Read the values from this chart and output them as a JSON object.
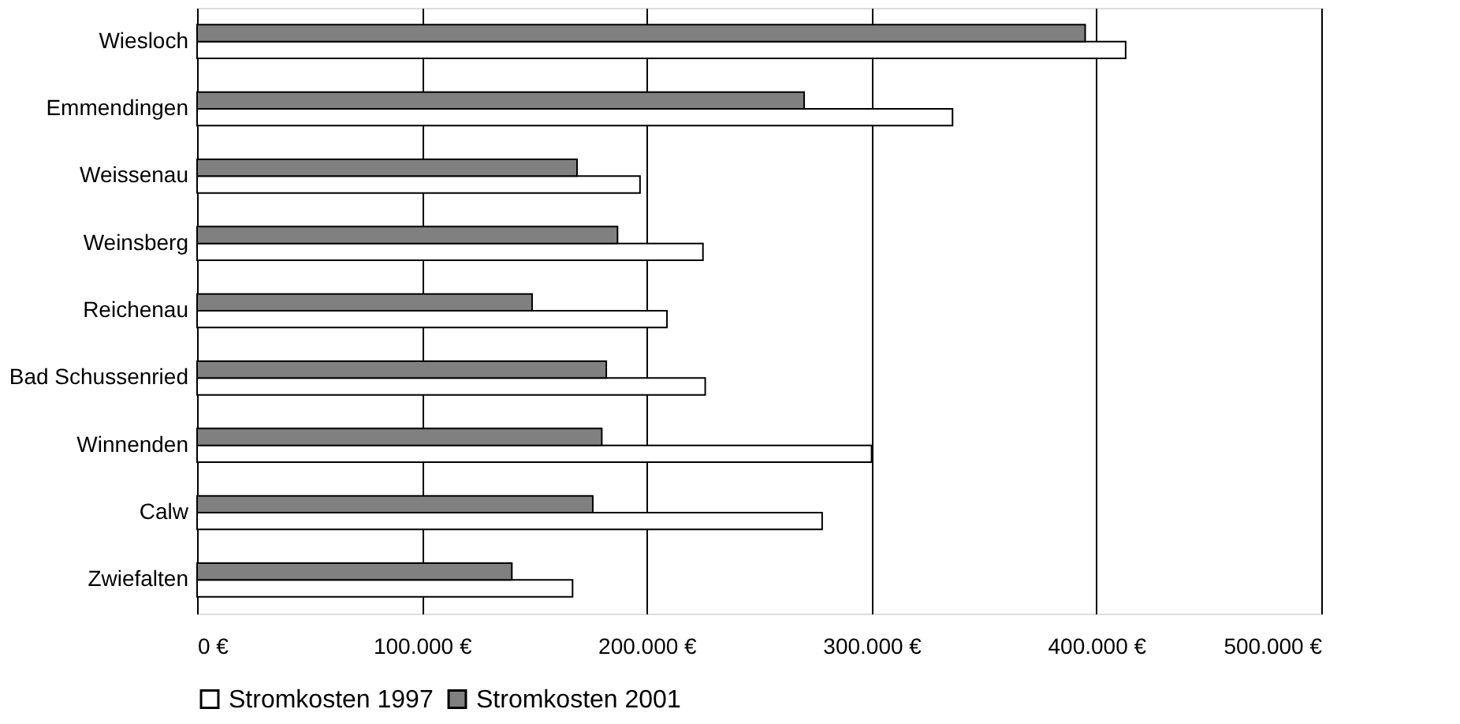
{
  "chart_data": {
    "type": "bar",
    "orientation": "horizontal",
    "categories": [
      "Wiesloch",
      "Emmendingen",
      "Weissenau",
      "Weinsberg",
      "Reichenau",
      "Bad Schussenried",
      "Winnenden",
      "Calw",
      "Zwiefalten"
    ],
    "series": [
      {
        "name": "Stromkosten 1997",
        "color": "#ffffff",
        "values": [
          413000,
          336000,
          197000,
          225000,
          209000,
          226000,
          300000,
          278000,
          167000
        ]
      },
      {
        "name": "Stromkosten 2001",
        "color": "#808080",
        "values": [
          395000,
          270000,
          169000,
          187000,
          149000,
          182000,
          180000,
          176000,
          140000
        ]
      }
    ],
    "xlim": [
      0,
      500000
    ],
    "xticks": [
      {
        "value": 0,
        "label": "0 €"
      },
      {
        "value": 100000,
        "label": "100.000 €"
      },
      {
        "value": 200000,
        "label": "200.000 €"
      },
      {
        "value": 300000,
        "label": "300.000 €"
      },
      {
        "value": 400000,
        "label": "400.000 €"
      },
      {
        "value": 500000,
        "label": "500.000 €"
      }
    ],
    "grid": "x",
    "legend": "bottom"
  }
}
